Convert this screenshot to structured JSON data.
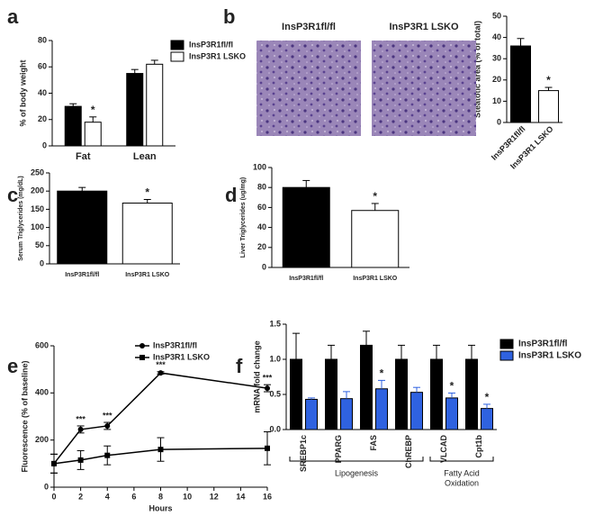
{
  "chart_data": [
    {
      "type": "bar",
      "panel": "a",
      "ylabel": "% of body weight",
      "categories": [
        "Fat",
        "Lean"
      ],
      "ylim": [
        0,
        80
      ],
      "yticks": [
        0,
        20,
        40,
        60,
        80
      ],
      "legend": "upper right",
      "series": [
        {
          "name": "InsP3R1fl/fl",
          "color": "#000000",
          "values": [
            30,
            55
          ],
          "errors": [
            2,
            3
          ]
        },
        {
          "name": "InsP3R1 LSKO",
          "color": "#ffffff",
          "values": [
            18,
            62
          ],
          "errors": [
            4,
            3
          ],
          "significance": [
            "*",
            null
          ]
        }
      ]
    },
    {
      "type": "bar",
      "panel": "b",
      "ylabel": "Steatotic area (% of total)",
      "image_titles": [
        "InsP3R1fl/fl",
        "InsP3R1 LSKO"
      ],
      "categories": [
        "InsP3R1fl/fl",
        "InsP3R1 LSKO"
      ],
      "ylim": [
        0,
        50
      ],
      "yticks": [
        0,
        10,
        20,
        30,
        40,
        50
      ],
      "series": [
        {
          "colors": [
            "#000000",
            "#ffffff"
          ],
          "values": [
            36,
            15
          ],
          "errors": [
            3.5,
            1.5
          ],
          "significance": [
            null,
            "*"
          ]
        }
      ]
    },
    {
      "type": "bar",
      "panel": "c",
      "ylabel": "Serum Triglycerides (mg/dL)",
      "categories": [
        "InsP3R1fl/fl",
        "InsP3R1 LSKO"
      ],
      "ylim": [
        0,
        250
      ],
      "yticks": [
        0,
        50,
        100,
        150,
        200,
        250
      ],
      "series": [
        {
          "colors": [
            "#000000",
            "#ffffff"
          ],
          "values": [
            200,
            167
          ],
          "errors": [
            10,
            10
          ],
          "significance": [
            null,
            "*"
          ]
        }
      ]
    },
    {
      "type": "bar",
      "panel": "d",
      "ylabel": "Liver Triglycerides (ug/mg)",
      "categories": [
        "InsP3R1fl/fl",
        "InsP3R1 LSKO"
      ],
      "ylim": [
        0,
        100
      ],
      "yticks": [
        0,
        20,
        40,
        60,
        80,
        100
      ],
      "series": [
        {
          "colors": [
            "#000000",
            "#ffffff"
          ],
          "values": [
            80,
            57
          ],
          "errors": [
            7,
            7
          ],
          "significance": [
            null,
            "*"
          ]
        }
      ]
    },
    {
      "type": "line",
      "panel": "e",
      "xlabel": "Hours",
      "ylabel": "Fluorescence (% of baseline)",
      "x": [
        0,
        2,
        4,
        8,
        16
      ],
      "xlim": [
        0,
        16
      ],
      "xticks": [
        0,
        2,
        4,
        6,
        8,
        10,
        12,
        14,
        16
      ],
      "ylim": [
        0,
        600
      ],
      "yticks": [
        0,
        200,
        400,
        600
      ],
      "legend": "upper right",
      "series": [
        {
          "name": "InsP3R1fl/fl",
          "color": "#000000",
          "values": [
            100,
            245,
            260,
            485,
            420
          ],
          "errors": [
            40,
            15,
            15,
            5,
            15
          ],
          "significance": [
            null,
            "***",
            "***",
            "***",
            "***"
          ]
        },
        {
          "name": "InsP3R1 LSKO",
          "color": "#000000",
          "values": [
            100,
            115,
            135,
            160,
            165
          ],
          "errors": [
            40,
            40,
            40,
            50,
            70
          ]
        }
      ]
    },
    {
      "type": "bar",
      "panel": "f",
      "ylabel": "mRNA fold change",
      "categories": [
        "SREBP1c",
        "PPARG",
        "FAS",
        "ChREBP",
        "VLCAD",
        "Cpt1b"
      ],
      "ylim": [
        0,
        1.5
      ],
      "yticks": [
        {
          "value": 0,
          "label": "0.0"
        },
        0.5,
        {
          "value": 1,
          "label": "1.0"
        },
        1.5
      ],
      "legend": "upper right",
      "groups": [
        {
          "lines": [
            "Lipogenesis"
          ]
        },
        {
          "lines": [
            "Fatty Acid",
            "Oxidation"
          ]
        }
      ],
      "series": [
        {
          "name": "InsP3R1fl/fl",
          "color": "#000000",
          "values": [
            1,
            1,
            1.2,
            1,
            1,
            1
          ],
          "errors": [
            0.37,
            0.2,
            0.2,
            0.2,
            0.2,
            0.2
          ]
        },
        {
          "name": "InsP3R1 LSKO",
          "color": "#2f62e0",
          "values": [
            0.43,
            0.44,
            0.58,
            0.53,
            0.45,
            0.3
          ],
          "errors": [
            0.02,
            0.1,
            0.12,
            0.07,
            0.07,
            0.06
          ],
          "significance": [
            null,
            null,
            "*",
            null,
            "*",
            "*"
          ]
        }
      ]
    }
  ]
}
